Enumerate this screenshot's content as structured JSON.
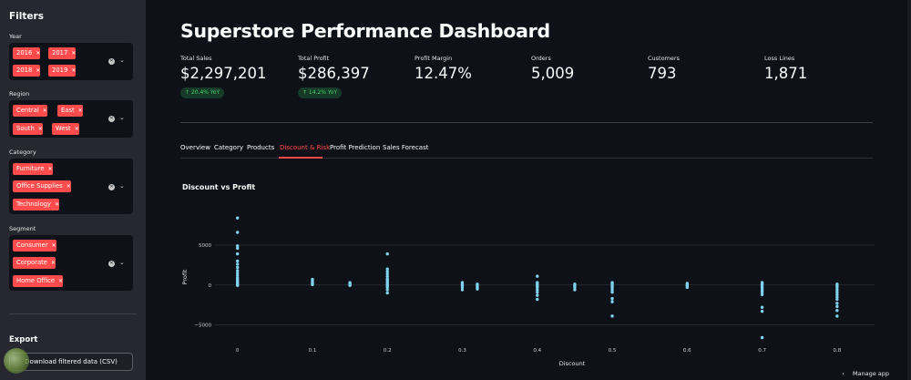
{
  "sidebar": {
    "title": "Filters",
    "filters": [
      {
        "label": "Year",
        "chips": [
          "2016",
          "2017",
          "2018",
          "2019"
        ]
      },
      {
        "label": "Region",
        "chips": [
          "Central",
          "East",
          "South",
          "West"
        ]
      },
      {
        "label": "Category",
        "chips": [
          "Furniture",
          "Office Supplies",
          "Technology"
        ]
      },
      {
        "label": "Segment",
        "chips": [
          "Consumer",
          "Corporate",
          "Home Office"
        ]
      }
    ],
    "export_title": "Export",
    "download_label": "Download filtered data (CSV)"
  },
  "main": {
    "title": "Superstore Performance Dashboard",
    "metrics": [
      {
        "label": "Total Sales",
        "value": "$2,297,201",
        "delta": "↑ 20.4% YoY"
      },
      {
        "label": "Total Profit",
        "value": "$286,397",
        "delta": "↑ 14.2% YoY"
      },
      {
        "label": "Profit Margin",
        "value": "12.47%"
      },
      {
        "label": "Orders",
        "value": "5,009"
      },
      {
        "label": "Customers",
        "value": "793"
      },
      {
        "label": "Loss Lines",
        "value": "1,871"
      }
    ],
    "tabs": [
      "Overview",
      "Category",
      "Products",
      "Discount & Risk",
      "Profit Prediction",
      "Sales Forecast"
    ],
    "active_tab": "Discount & Risk",
    "chart_title": "Discount vs Profit"
  },
  "footer": {
    "manage_app": "Manage app"
  },
  "colors": {
    "accent": "#ff4b4b",
    "point": "#7fd3ee",
    "delta_green": "#3dd56d"
  },
  "chart_data": {
    "type": "scatter",
    "title": "Discount vs Profit",
    "xlabel": "Discount",
    "ylabel": "Profit",
    "xticks": [
      "0",
      "0.1",
      "0.2",
      "0.3",
      "0.4",
      "0.5",
      "0.6",
      "0.7",
      "0.8"
    ],
    "yticks": [
      "5000",
      "0",
      "−5000"
    ],
    "xlim": [
      -0.03,
      0.85
    ],
    "ylim": [
      -7000,
      9000
    ],
    "points": [
      [
        0,
        8400
      ],
      [
        0,
        6600
      ],
      [
        0,
        4900
      ],
      [
        0,
        4600
      ],
      [
        0,
        3900
      ],
      [
        0,
        3000
      ],
      [
        0,
        2600
      ],
      [
        0,
        2200
      ],
      [
        0,
        1800
      ],
      [
        0,
        1500
      ],
      [
        0,
        1200
      ],
      [
        0,
        900
      ],
      [
        0,
        700
      ],
      [
        0,
        500
      ],
      [
        0,
        350
      ],
      [
        0,
        200
      ],
      [
        0,
        100
      ],
      [
        0,
        0
      ],
      [
        0,
        -50
      ],
      [
        0.1,
        700
      ],
      [
        0.1,
        500
      ],
      [
        0.1,
        300
      ],
      [
        0.1,
        150
      ],
      [
        0.1,
        50
      ],
      [
        0.15,
        300
      ],
      [
        0.15,
        150
      ],
      [
        0.15,
        50
      ],
      [
        0.15,
        -50
      ],
      [
        0.2,
        3900
      ],
      [
        0.2,
        2000
      ],
      [
        0.2,
        1700
      ],
      [
        0.2,
        1400
      ],
      [
        0.2,
        1100
      ],
      [
        0.2,
        800
      ],
      [
        0.2,
        600
      ],
      [
        0.2,
        400
      ],
      [
        0.2,
        200
      ],
      [
        0.2,
        50
      ],
      [
        0.2,
        -100
      ],
      [
        0.2,
        -300
      ],
      [
        0.2,
        -600
      ],
      [
        0.2,
        -1000
      ],
      [
        0.3,
        300
      ],
      [
        0.3,
        100
      ],
      [
        0.3,
        -100
      ],
      [
        0.3,
        -300
      ],
      [
        0.3,
        -600
      ],
      [
        0.32,
        100
      ],
      [
        0.32,
        -100
      ],
      [
        0.32,
        -300
      ],
      [
        0.32,
        -500
      ],
      [
        0.4,
        1100
      ],
      [
        0.4,
        300
      ],
      [
        0.4,
        100
      ],
      [
        0.4,
        -100
      ],
      [
        0.4,
        -300
      ],
      [
        0.4,
        -600
      ],
      [
        0.4,
        -900
      ],
      [
        0.4,
        -1300
      ],
      [
        0.4,
        -1800
      ],
      [
        0.45,
        100
      ],
      [
        0.45,
        -100
      ],
      [
        0.45,
        -300
      ],
      [
        0.45,
        -600
      ],
      [
        0.5,
        300
      ],
      [
        0.5,
        100
      ],
      [
        0.5,
        -100
      ],
      [
        0.5,
        -300
      ],
      [
        0.5,
        -600
      ],
      [
        0.5,
        -900
      ],
      [
        0.5,
        -1700
      ],
      [
        0.5,
        -2100
      ],
      [
        0.5,
        -3900
      ],
      [
        0.6,
        200
      ],
      [
        0.6,
        50
      ],
      [
        0.6,
        -100
      ],
      [
        0.6,
        -300
      ],
      [
        0.7,
        300
      ],
      [
        0.7,
        100
      ],
      [
        0.7,
        -100
      ],
      [
        0.7,
        -300
      ],
      [
        0.7,
        -500
      ],
      [
        0.7,
        -700
      ],
      [
        0.7,
        -900
      ],
      [
        0.7,
        -1200
      ],
      [
        0.7,
        -2800
      ],
      [
        0.7,
        -3300
      ],
      [
        0.7,
        -6600
      ],
      [
        0.8,
        100
      ],
      [
        0.8,
        -100
      ],
      [
        0.8,
        -300
      ],
      [
        0.8,
        -600
      ],
      [
        0.8,
        -900
      ],
      [
        0.8,
        -1200
      ],
      [
        0.8,
        -1500
      ],
      [
        0.8,
        -1800
      ],
      [
        0.8,
        -2300
      ],
      [
        0.8,
        -2700
      ],
      [
        0.8,
        -3200
      ],
      [
        0.8,
        -3900
      ]
    ]
  }
}
